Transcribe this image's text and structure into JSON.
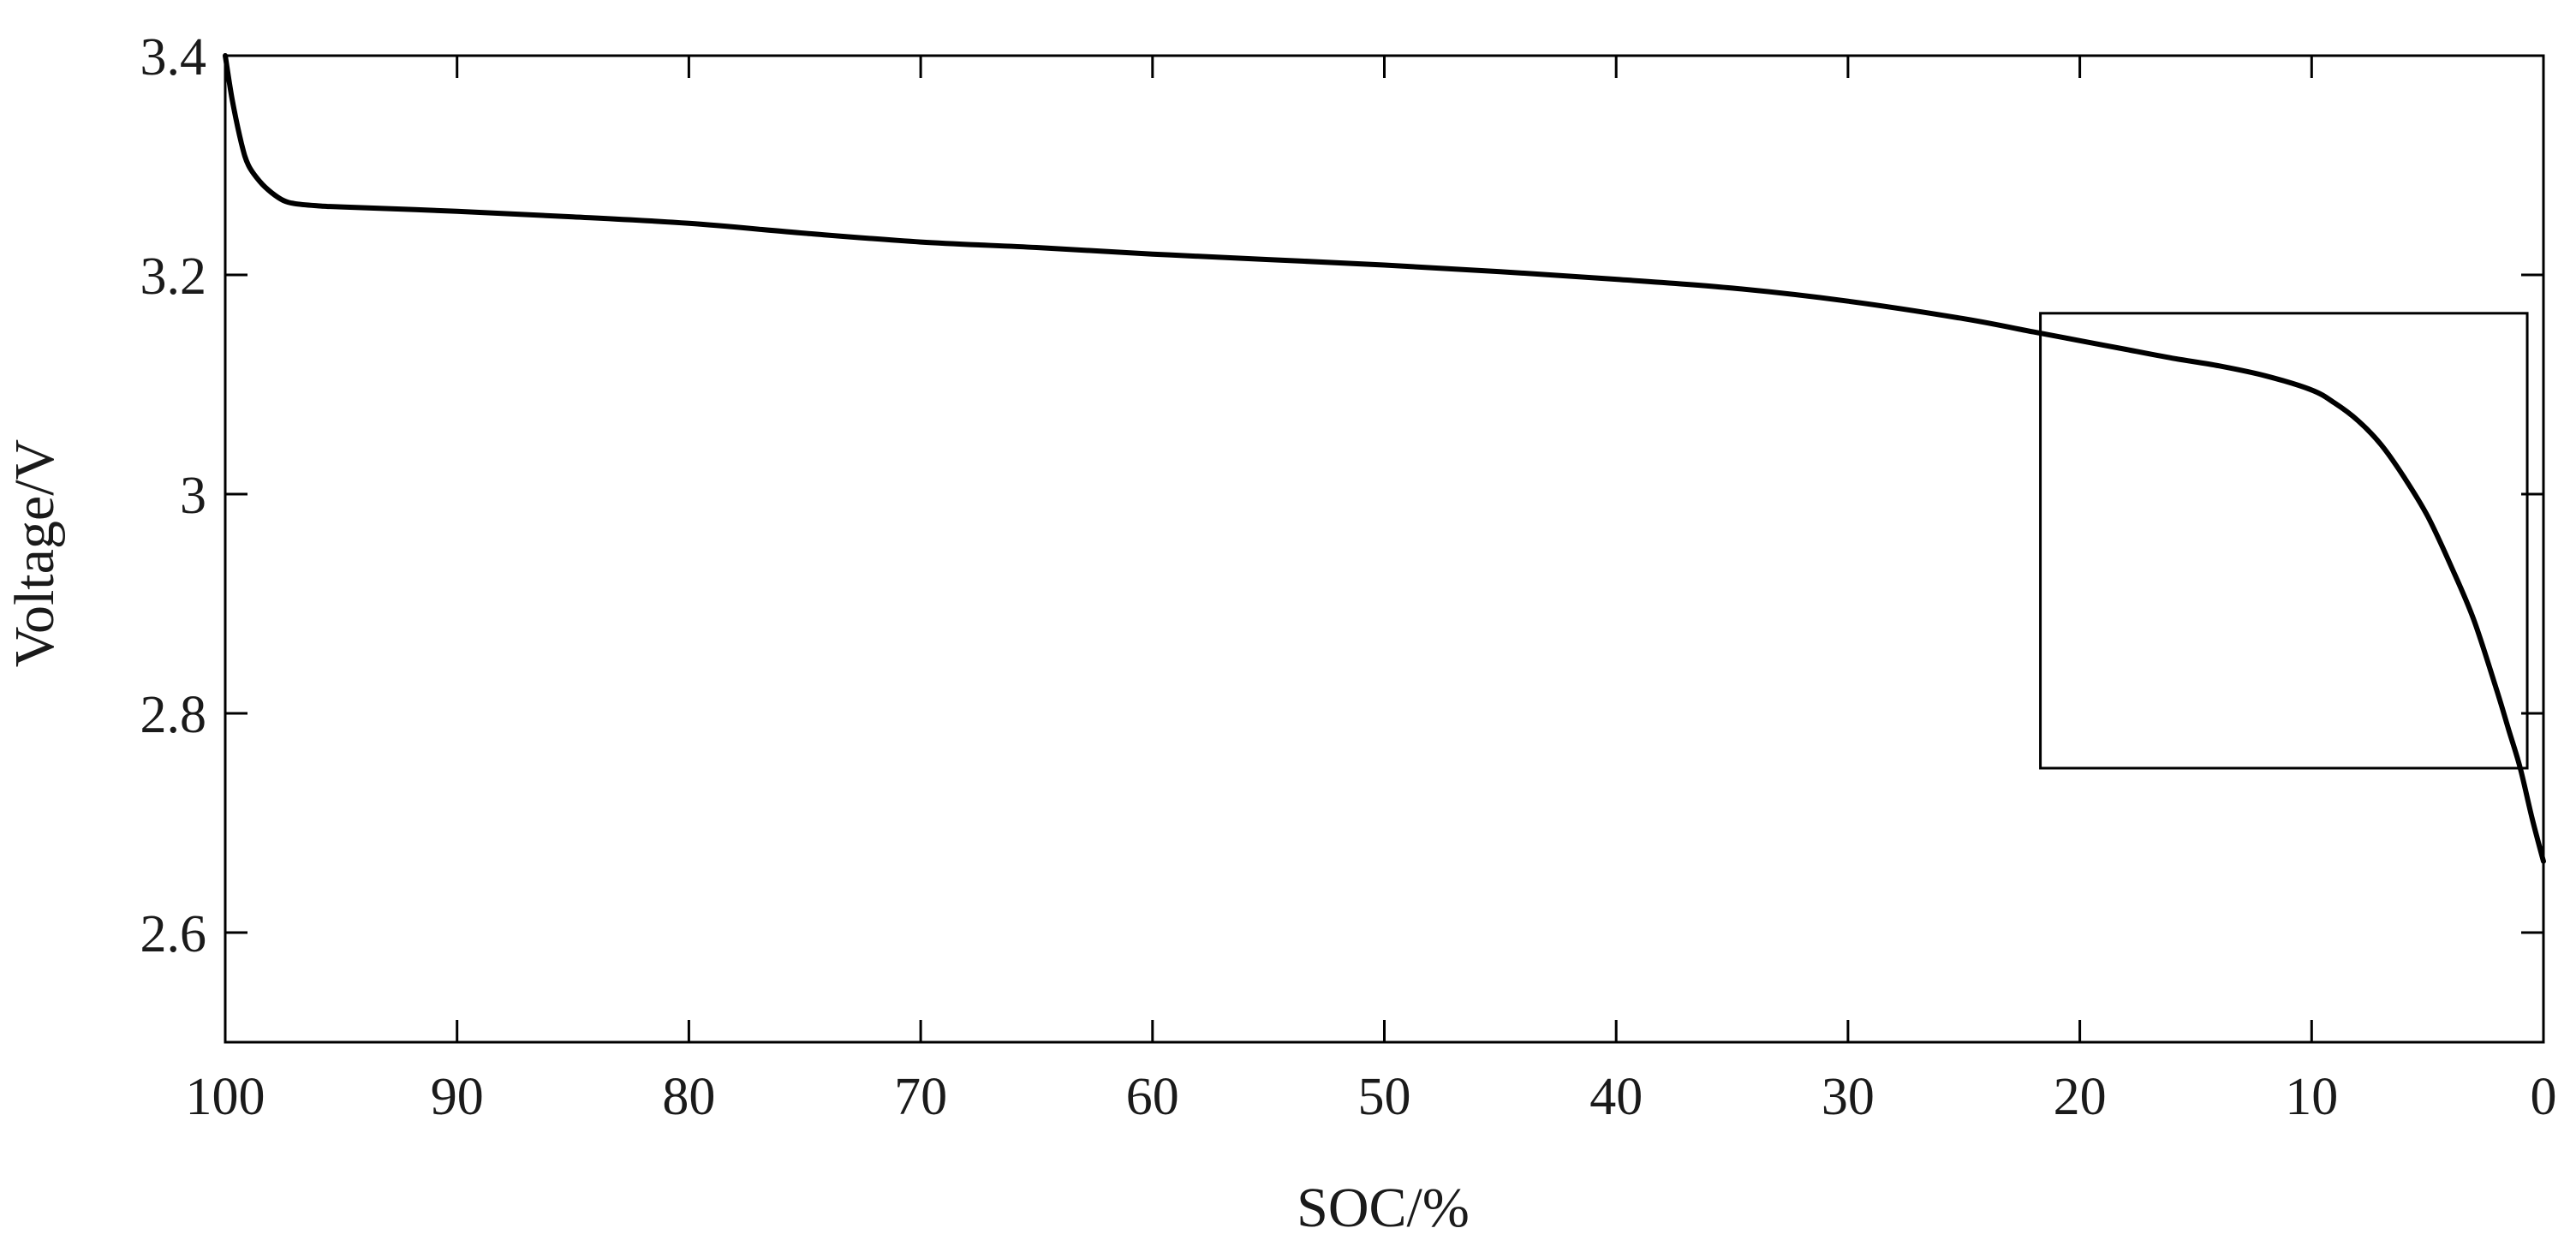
{
  "chart_data": {
    "type": "line",
    "title": "",
    "xlabel": "SOC/%",
    "ylabel": "Voltage/V",
    "xlim": [
      100,
      0
    ],
    "x_reversed": true,
    "ylim": [
      2.5,
      3.4
    ],
    "xticks": [
      100,
      90,
      80,
      70,
      60,
      50,
      40,
      30,
      20,
      10,
      0
    ],
    "yticks": [
      2.6,
      2.8,
      3,
      3.2,
      3.4
    ],
    "grid": false,
    "legend": "none",
    "line_color": "#000000",
    "series": [
      {
        "x": [
          100,
          99.7,
          99.3,
          99,
          98.5,
          98,
          97.5,
          97,
          96,
          95,
          90,
          85,
          80,
          75,
          70,
          65,
          60,
          55,
          50,
          45,
          40,
          35,
          30,
          25,
          22,
          20,
          18,
          16,
          14,
          12,
          10,
          9,
          8,
          7,
          6,
          5,
          4,
          3,
          2,
          1.5,
          1,
          0.5,
          0
        ],
        "y": [
          3.4,
          3.36,
          3.32,
          3.3,
          3.285,
          3.275,
          3.268,
          3.265,
          3.263,
          3.262,
          3.258,
          3.253,
          3.247,
          3.238,
          3.23,
          3.225,
          3.219,
          3.214,
          3.209,
          3.203,
          3.196,
          3.188,
          3.176,
          3.16,
          3.148,
          3.14,
          3.132,
          3.124,
          3.117,
          3.108,
          3.095,
          3.083,
          3.067,
          3.045,
          3.015,
          2.98,
          2.935,
          2.885,
          2.82,
          2.785,
          2.75,
          2.705,
          2.665
        ]
      }
    ],
    "annotations": [
      {
        "type": "rectangle",
        "x_range": [
          21.7,
          0.7
        ],
        "y_range": [
          2.75,
          3.165
        ]
      }
    ]
  }
}
